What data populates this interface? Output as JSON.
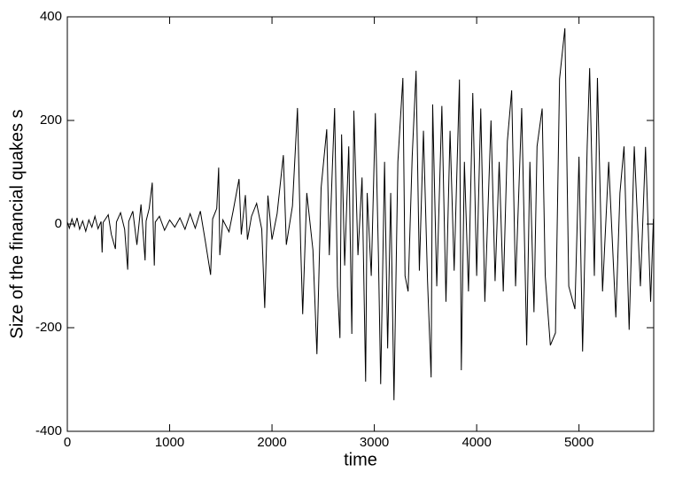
{
  "chart_data": {
    "type": "line",
    "x_label": "time",
    "y_label": "Size of the financial quakes s",
    "color": "#000000",
    "xlim": [
      0,
      5730
    ],
    "ylim": [
      -400,
      400
    ],
    "xticks": [
      0,
      1000,
      2000,
      3000,
      4000,
      5000
    ],
    "yticks": [
      -400,
      -200,
      0,
      200,
      400
    ],
    "x": [
      0,
      20,
      45,
      70,
      95,
      120,
      150,
      180,
      210,
      240,
      270,
      300,
      330,
      340,
      350,
      400,
      430,
      470,
      480,
      520,
      560,
      590,
      600,
      640,
      680,
      720,
      760,
      770,
      800,
      830,
      840,
      850,
      860,
      900,
      950,
      1000,
      1050,
      1100,
      1150,
      1200,
      1250,
      1300,
      1350,
      1400,
      1420,
      1460,
      1479,
      1490,
      1520,
      1580,
      1620,
      1678,
      1700,
      1740,
      1760,
      1800,
      1850,
      1900,
      1929,
      1960,
      2000,
      2050,
      2111,
      2140,
      2200,
      2249,
      2280,
      2300,
      2340,
      2400,
      2439,
      2480,
      2535,
      2560,
      2590,
      2612,
      2640,
      2664,
      2680,
      2710,
      2750,
      2780,
      2800,
      2840,
      2880,
      2915,
      2930,
      2970,
      3010,
      3040,
      3062,
      3100,
      3130,
      3160,
      3192,
      3230,
      3279,
      3300,
      3330,
      3370,
      3408,
      3440,
      3480,
      3520,
      3555,
      3570,
      3610,
      3660,
      3700,
      3740,
      3780,
      3832,
      3850,
      3880,
      3920,
      3962,
      4000,
      4040,
      4080,
      4140,
      4180,
      4220,
      4260,
      4300,
      4342,
      4380,
      4440,
      4489,
      4520,
      4560,
      4590,
      4640,
      4670,
      4720,
      4770,
      4810,
      4862,
      4900,
      4960,
      5000,
      5035,
      5080,
      5104,
      5150,
      5180,
      5230,
      5290,
      5360,
      5400,
      5440,
      5490,
      5540,
      5600,
      5650,
      5700,
      5727
    ],
    "values": [
      4,
      -8,
      10,
      -5,
      12,
      -10,
      6,
      -14,
      8,
      -6,
      15,
      -9,
      5,
      -55,
      3,
      18,
      -20,
      -48,
      4,
      22,
      -10,
      -88,
      5,
      25,
      -40,
      38,
      -70,
      6,
      30,
      80,
      -8,
      -80,
      4,
      15,
      -12,
      8,
      -6,
      12,
      -10,
      20,
      -8,
      25,
      -35,
      -98,
      10,
      30,
      109,
      -60,
      8,
      -15,
      25,
      87,
      -20,
      56,
      -30,
      15,
      40,
      -10,
      -162,
      55,
      -30,
      20,
      133,
      -40,
      35,
      224,
      -40,
      -174,
      60,
      -50,
      -251,
      70,
      183,
      -60,
      110,
      224,
      -120,
      -220,
      173,
      -80,
      150,
      -212,
      219,
      -60,
      90,
      -304,
      60,
      -100,
      214,
      -60,
      -309,
      120,
      -240,
      60,
      -340,
      120,
      282,
      -100,
      -130,
      130,
      296,
      -90,
      180,
      -110,
      -296,
      231,
      -120,
      228,
      -150,
      180,
      -90,
      279,
      -282,
      120,
      -130,
      253,
      -100,
      223,
      -150,
      200,
      -110,
      120,
      -130,
      160,
      258,
      -120,
      224,
      -234,
      120,
      -170,
      150,
      223,
      -100,
      -234,
      -210,
      280,
      378,
      -120,
      -164,
      130,
      -246,
      150,
      301,
      -100,
      282,
      -130,
      120,
      -180,
      60,
      150,
      -204,
      150,
      -120,
      149,
      -150,
      10
    ]
  }
}
